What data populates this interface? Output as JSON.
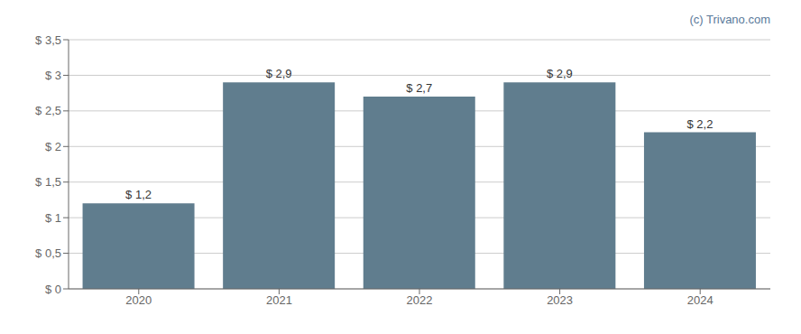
{
  "chart_data": {
    "type": "bar",
    "categories": [
      "2020",
      "2021",
      "2022",
      "2023",
      "2024"
    ],
    "values": [
      1.2,
      2.9,
      2.7,
      2.9,
      2.2
    ],
    "value_labels": [
      "$ 1,2",
      "$ 2,9",
      "$ 2,7",
      "$ 2,9",
      "$ 2,2"
    ],
    "data_labels": true,
    "color": "#607d8e",
    "ylim": [
      0,
      3.5
    ],
    "yticks": [
      {
        "value": 0,
        "label": "$ 0"
      },
      {
        "value": 0.5,
        "label": "$ 0,5"
      },
      {
        "value": 1.0,
        "label": "$ 1"
      },
      {
        "value": 1.5,
        "label": "$ 1,5"
      },
      {
        "value": 2.0,
        "label": "$ 2"
      },
      {
        "value": 2.5,
        "label": "$ 2,5"
      },
      {
        "value": 3.0,
        "label": "$ 3"
      },
      {
        "value": 3.5,
        "label": "$ 3,5"
      }
    ],
    "grid": true,
    "annotations": [
      {
        "text": "(c) Trivano.com",
        "color": "#5a7a9a"
      }
    ]
  }
}
